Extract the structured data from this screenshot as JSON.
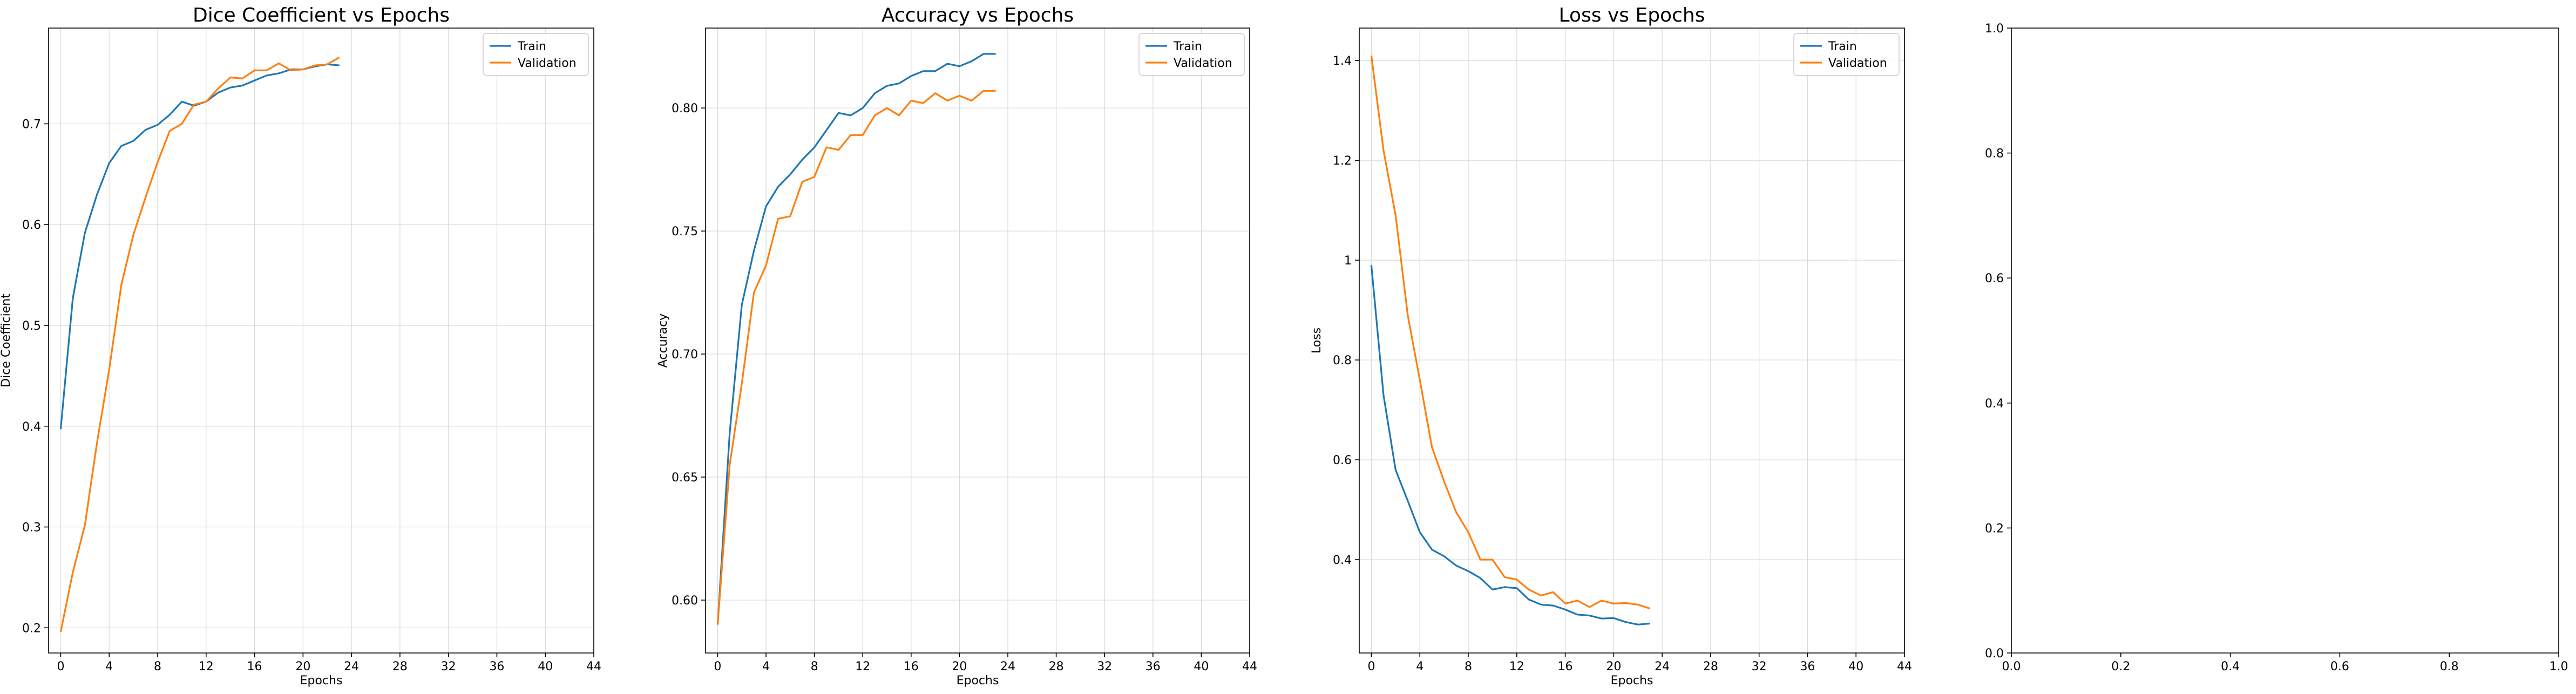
{
  "chart_data": [
    {
      "type": "line",
      "title": "Dice Coefficient vs Epochs",
      "xlabel": "Epochs",
      "ylabel": "Dice Coefficient",
      "xlim": [
        -1,
        44
      ],
      "ylim": [
        0.175,
        0.795
      ],
      "xticks": [
        0,
        4,
        8,
        12,
        16,
        20,
        24,
        28,
        32,
        36,
        40,
        44
      ],
      "yticks": [
        0.2,
        0.3,
        0.4,
        0.5,
        0.6,
        0.7
      ],
      "grid": true,
      "legend": "top-right",
      "x": [
        0,
        1,
        2,
        3,
        4,
        5,
        6,
        7,
        8,
        9,
        10,
        11,
        12,
        13,
        14,
        15,
        16,
        17,
        18,
        19,
        20,
        21,
        22,
        23
      ],
      "series": [
        {
          "name": "Train",
          "color": "#1f77b4",
          "values": [
            0.397,
            0.527,
            0.592,
            0.63,
            0.661,
            0.678,
            0.683,
            0.694,
            0.699,
            0.709,
            0.722,
            0.718,
            0.722,
            0.731,
            0.736,
            0.738,
            0.743,
            0.748,
            0.75,
            0.754,
            0.754,
            0.757,
            0.759,
            0.758
          ]
        },
        {
          "name": "Validation",
          "color": "#ff7f0e",
          "values": [
            0.196,
            0.255,
            0.302,
            0.384,
            0.456,
            0.54,
            0.59,
            0.627,
            0.662,
            0.693,
            0.7,
            0.719,
            0.722,
            0.735,
            0.746,
            0.745,
            0.753,
            0.753,
            0.76,
            0.753,
            0.754,
            0.758,
            0.759,
            0.766
          ]
        }
      ]
    },
    {
      "type": "line",
      "title": "Accuracy vs Epochs",
      "xlabel": "Epochs",
      "ylabel": "Accuracy",
      "xlim": [
        -1,
        44
      ],
      "ylim": [
        0.5785,
        0.8325
      ],
      "xticks": [
        0,
        4,
        8,
        12,
        16,
        20,
        24,
        28,
        32,
        36,
        40,
        44
      ],
      "yticks": [
        0.6,
        0.65,
        0.7,
        0.75,
        0.8
      ],
      "ytickfmt": 2,
      "grid": true,
      "legend": "top-right",
      "x": [
        0,
        1,
        2,
        3,
        4,
        5,
        6,
        7,
        8,
        9,
        10,
        11,
        12,
        13,
        14,
        15,
        16,
        17,
        18,
        19,
        20,
        21,
        22,
        23
      ],
      "series": [
        {
          "name": "Train",
          "color": "#1f77b4",
          "values": [
            0.59,
            0.668,
            0.72,
            0.742,
            0.76,
            0.768,
            0.773,
            0.779,
            0.784,
            0.791,
            0.798,
            0.797,
            0.8,
            0.806,
            0.809,
            0.81,
            0.813,
            0.815,
            0.815,
            0.818,
            0.817,
            0.819,
            0.822,
            0.822
          ]
        },
        {
          "name": "Validation",
          "color": "#ff7f0e",
          "values": [
            0.59,
            0.655,
            0.688,
            0.725,
            0.736,
            0.755,
            0.756,
            0.77,
            0.772,
            0.784,
            0.783,
            0.789,
            0.789,
            0.797,
            0.8,
            0.797,
            0.803,
            0.802,
            0.806,
            0.803,
            0.805,
            0.803,
            0.807,
            0.807
          ]
        }
      ]
    },
    {
      "type": "line",
      "title": "Loss vs Epochs",
      "xlabel": "Epochs",
      "ylabel": "Loss",
      "xlim": [
        -1,
        44
      ],
      "ylim": [
        0.213,
        1.465
      ],
      "xticks": [
        0,
        4,
        8,
        12,
        16,
        20,
        24,
        28,
        32,
        36,
        40,
        44
      ],
      "yticks": [
        0.4,
        0.6,
        0.8,
        1.0,
        1.2,
        1.4
      ],
      "grid": true,
      "legend": "top-right",
      "x": [
        0,
        1,
        2,
        3,
        4,
        5,
        6,
        7,
        8,
        9,
        10,
        11,
        12,
        13,
        14,
        15,
        16,
        17,
        18,
        19,
        20,
        21,
        22,
        23
      ],
      "series": [
        {
          "name": "Train",
          "color": "#1f77b4",
          "values": [
            0.99,
            0.73,
            0.58,
            0.518,
            0.455,
            0.42,
            0.407,
            0.388,
            0.377,
            0.363,
            0.34,
            0.345,
            0.343,
            0.32,
            0.31,
            0.308,
            0.3,
            0.29,
            0.288,
            0.282,
            0.283,
            0.275,
            0.27,
            0.272
          ]
        },
        {
          "name": "Validation",
          "color": "#ff7f0e",
          "values": [
            1.41,
            1.22,
            1.09,
            0.89,
            0.76,
            0.625,
            0.557,
            0.495,
            0.455,
            0.4,
            0.4,
            0.365,
            0.36,
            0.34,
            0.328,
            0.335,
            0.312,
            0.318,
            0.305,
            0.318,
            0.312,
            0.313,
            0.31,
            0.302
          ]
        }
      ]
    },
    {
      "type": "empty",
      "xlim": [
        0,
        1
      ],
      "ylim": [
        0,
        1
      ],
      "xticks": [
        0.0,
        0.2,
        0.4,
        0.6,
        0.8,
        1.0
      ],
      "yticks": [
        0.0,
        0.2,
        0.4,
        0.6,
        0.8,
        1.0
      ],
      "xtickfmt": 1,
      "ytickfmt": 1,
      "grid": false
    }
  ]
}
